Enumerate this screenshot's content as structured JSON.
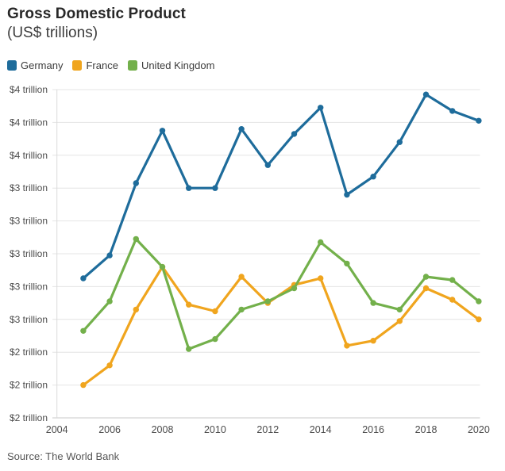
{
  "header": {
    "title": "Gross Domestic Product",
    "subtitle": "(US$ trillions)"
  },
  "legend": {
    "items": [
      {
        "label": "Germany",
        "color": "#1e6c9b"
      },
      {
        "label": "France",
        "color": "#f0a51e"
      },
      {
        "label": "United Kingdom",
        "color": "#73b04b"
      }
    ]
  },
  "chart_data": {
    "type": "line",
    "title": "Gross Domestic Product",
    "subtitle": "(US$ trillions)",
    "xlabel": "",
    "ylabel": "",
    "grid": true,
    "legend_position": "top",
    "xlim": [
      2004,
      2020
    ],
    "ylim": [
      2.0,
      4.0
    ],
    "x": [
      2005,
      2006,
      2007,
      2008,
      2009,
      2010,
      2011,
      2012,
      2013,
      2014,
      2015,
      2016,
      2017,
      2018,
      2019,
      2020
    ],
    "series": [
      {
        "name": "Germany",
        "color": "#1e6c9b",
        "values": [
          2.85,
          2.99,
          3.43,
          3.75,
          3.4,
          3.4,
          3.76,
          3.54,
          3.73,
          3.89,
          3.36,
          3.47,
          3.68,
          3.97,
          3.87,
          3.81
        ]
      },
      {
        "name": "France",
        "color": "#f0a51e",
        "values": [
          2.2,
          2.32,
          2.66,
          2.92,
          2.69,
          2.65,
          2.86,
          2.7,
          2.81,
          2.85,
          2.44,
          2.47,
          2.59,
          2.79,
          2.72,
          2.6
        ]
      },
      {
        "name": "United Kingdom",
        "color": "#73b04b",
        "values": [
          2.53,
          2.71,
          3.09,
          2.92,
          2.42,
          2.48,
          2.66,
          2.71,
          2.79,
          3.07,
          2.94,
          2.7,
          2.66,
          2.86,
          2.84,
          2.71
        ]
      }
    ],
    "y_ticks": [
      {
        "value": 4.0,
        "label": "$4 trillion"
      },
      {
        "value": 3.8,
        "label": "$4 trillion"
      },
      {
        "value": 3.6,
        "label": "$4 trillion"
      },
      {
        "value": 3.4,
        "label": "$3 trillion"
      },
      {
        "value": 3.2,
        "label": "$3 trillion"
      },
      {
        "value": 3.0,
        "label": "$3 trillion"
      },
      {
        "value": 2.8,
        "label": "$3 trillion"
      },
      {
        "value": 2.6,
        "label": "$3 trillion"
      },
      {
        "value": 2.4,
        "label": "$2 trillion"
      },
      {
        "value": 2.2,
        "label": "$2 trillion"
      },
      {
        "value": 2.0,
        "label": "$2 trillion"
      }
    ],
    "x_ticks": [
      {
        "value": 2004,
        "label": "2004"
      },
      {
        "value": 2006,
        "label": "2006"
      },
      {
        "value": 2008,
        "label": "2008"
      },
      {
        "value": 2010,
        "label": "2010"
      },
      {
        "value": 2012,
        "label": "2012"
      },
      {
        "value": 2014,
        "label": "2014"
      },
      {
        "value": 2016,
        "label": "2016"
      },
      {
        "value": 2018,
        "label": "2018"
      },
      {
        "value": 2020,
        "label": "2020"
      }
    ]
  },
  "source": {
    "text": "Source: The World Bank"
  },
  "colors": {
    "background": "#ffffff",
    "gridline": "#e4e4e4",
    "axis_line": "#c9c9c9",
    "y_axis_line": "#dadada",
    "tick_text": "#4b4b4b"
  }
}
